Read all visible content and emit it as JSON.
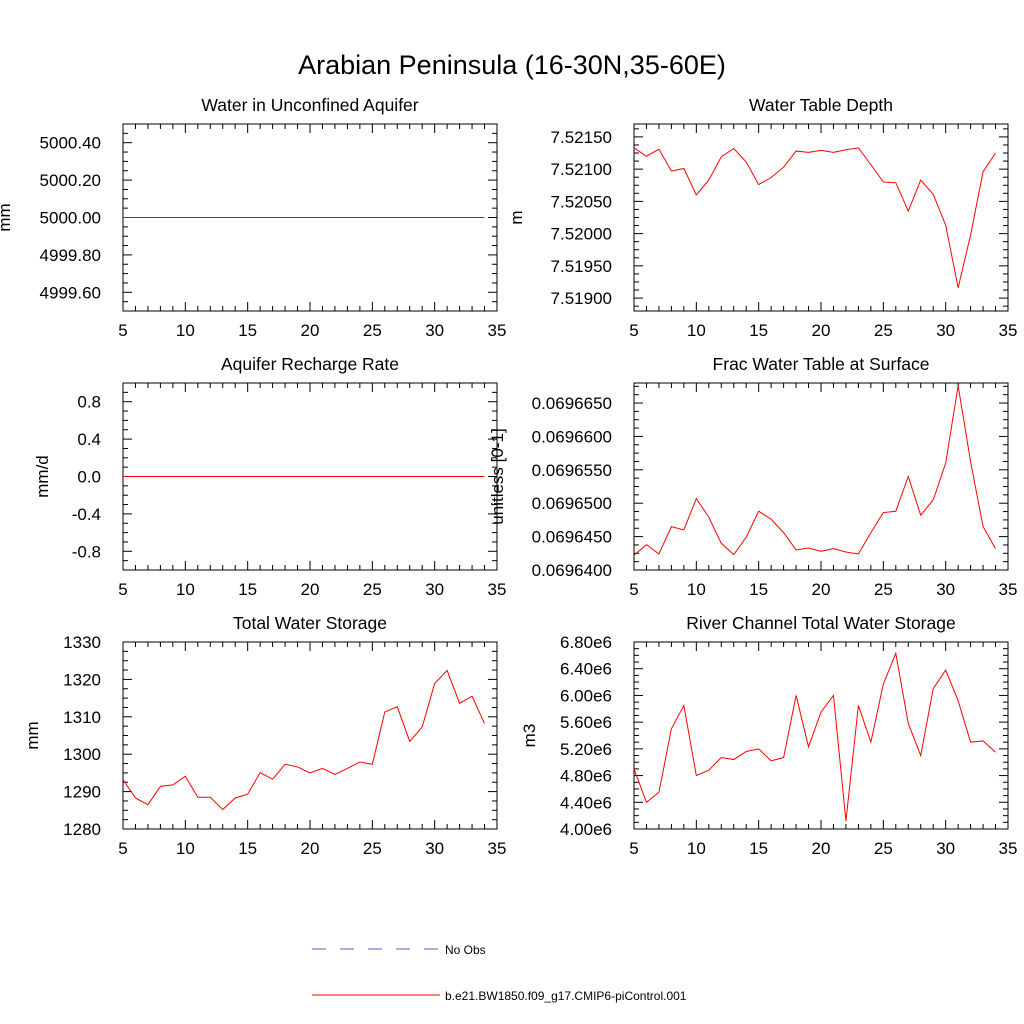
{
  "title": "Arabian Peninsula (16-30N,35-60E)",
  "legend": [
    {
      "label": "No Obs",
      "color": "#5a5ac8",
      "dash": true
    },
    {
      "label": "b.e21.BW1850.f09_g17.CMIP6-piControl.001",
      "color": "#ff0000",
      "dash": false
    }
  ],
  "chart_data": [
    {
      "type": "line",
      "title": "Water in Unconfined Aquifer",
      "ylabel": "mm",
      "xlim": [
        5,
        35
      ],
      "ylim": [
        4999.5,
        5000.5
      ],
      "xticks": [
        5,
        10,
        15,
        20,
        25,
        30,
        35
      ],
      "yticks": [
        4999.6,
        4999.8,
        5000.0,
        5000.2,
        5000.4
      ],
      "ytick_labels": [
        "4999.60",
        "4999.80",
        "5000.00",
        "5000.20",
        "5000.40"
      ],
      "x": [
        5,
        6,
        7,
        8,
        9,
        10,
        11,
        12,
        13,
        14,
        15,
        16,
        17,
        18,
        19,
        20,
        21,
        22,
        23,
        24,
        25,
        26,
        27,
        28,
        29,
        30,
        31,
        32,
        33,
        34
      ],
      "series": [
        {
          "color": "#ff0000",
          "values": [
            5000,
            5000,
            5000,
            5000,
            5000,
            5000,
            5000,
            5000,
            5000,
            5000,
            5000,
            5000,
            5000,
            5000,
            5000,
            5000,
            5000,
            5000,
            5000,
            5000,
            5000,
            5000,
            5000,
            5000,
            5000,
            5000,
            5000,
            5000,
            5000,
            5000
          ]
        }
      ]
    },
    {
      "type": "line",
      "title": "Water Table Depth",
      "ylabel": "m",
      "xlim": [
        5,
        35
      ],
      "ylim": [
        7.5188,
        7.5217
      ],
      "xticks": [
        5,
        10,
        15,
        20,
        25,
        30,
        35
      ],
      "yticks": [
        7.519,
        7.5195,
        7.52,
        7.5205,
        7.521,
        7.5215
      ],
      "ytick_labels": [
        "7.51900",
        "7.51950",
        "7.52000",
        "7.52050",
        "7.52100",
        "7.52150"
      ],
      "x": [
        5,
        6,
        7,
        8,
        9,
        10,
        11,
        12,
        13,
        14,
        15,
        16,
        17,
        18,
        19,
        20,
        21,
        22,
        23,
        24,
        25,
        26,
        27,
        28,
        29,
        30,
        31,
        32,
        33,
        34
      ],
      "series": [
        {
          "color": "#ff0000",
          "values": [
            7.52133,
            7.5212,
            7.52131,
            7.52097,
            7.52101,
            7.5206,
            7.52083,
            7.52119,
            7.52132,
            7.52111,
            7.52076,
            7.52087,
            7.52103,
            7.52128,
            7.52126,
            7.52129,
            7.52126,
            7.5213,
            7.52133,
            7.52107,
            7.5208,
            7.52079,
            7.52035,
            7.52083,
            7.52061,
            7.52013,
            7.51916,
            7.51998,
            7.52096,
            7.52125
          ]
        }
      ]
    },
    {
      "type": "line",
      "title": "Aquifer Recharge Rate",
      "ylabel": "mm/d",
      "xlim": [
        5,
        35
      ],
      "ylim": [
        -1,
        1
      ],
      "xticks": [
        5,
        10,
        15,
        20,
        25,
        30,
        35
      ],
      "yticks": [
        -0.8,
        -0.4,
        0.0,
        0.4,
        0.8
      ],
      "ytick_labels": [
        "-0.8",
        "-0.4",
        "0.0",
        "0.4",
        "0.8"
      ],
      "x": [
        5,
        6,
        7,
        8,
        9,
        10,
        11,
        12,
        13,
        14,
        15,
        16,
        17,
        18,
        19,
        20,
        21,
        22,
        23,
        24,
        25,
        26,
        27,
        28,
        29,
        30,
        31,
        32,
        33,
        34
      ],
      "series": [
        {
          "color": "#ff0000",
          "values": [
            0,
            0,
            0,
            0,
            0,
            0,
            0,
            0,
            0,
            0,
            0,
            0,
            0,
            0,
            0,
            0,
            0,
            0,
            0,
            0,
            0,
            0,
            0,
            0,
            0,
            0,
            0,
            0,
            0,
            0
          ]
        }
      ]
    },
    {
      "type": "line",
      "title": "Frac Water Table at Surface",
      "ylabel": "unitless [0-1]",
      "xlim": [
        5,
        35
      ],
      "ylim": [
        0.06964,
        0.069668
      ],
      "xticks": [
        5,
        10,
        15,
        20,
        25,
        30,
        35
      ],
      "yticks": [
        0.06964,
        0.069645,
        0.06965,
        0.069655,
        0.06966,
        0.069665
      ],
      "ytick_labels": [
        "0.0696400",
        "0.0696450",
        "0.0696500",
        "0.0696550",
        "0.0696600",
        "0.0696650"
      ],
      "x": [
        5,
        6,
        7,
        8,
        9,
        10,
        11,
        12,
        13,
        14,
        15,
        16,
        17,
        18,
        19,
        20,
        21,
        22,
        23,
        24,
        25,
        26,
        27,
        28,
        29,
        30,
        31,
        32,
        33,
        34
      ],
      "series": [
        {
          "color": "#ff0000",
          "values": [
            0.0696422,
            0.0696438,
            0.0696424,
            0.0696465,
            0.069646,
            0.0696507,
            0.0696479,
            0.069644,
            0.0696423,
            0.0696449,
            0.0696488,
            0.0696476,
            0.0696456,
            0.069643,
            0.0696433,
            0.0696428,
            0.0696432,
            0.0696427,
            0.0696424,
            0.0696456,
            0.0696486,
            0.0696488,
            0.069654,
            0.0696482,
            0.0696505,
            0.069656,
            0.0696676,
            0.0696562,
            0.0696465,
            0.0696432
          ]
        }
      ]
    },
    {
      "type": "line",
      "title": "Total Water Storage",
      "ylabel": "mm",
      "xlim": [
        5,
        35
      ],
      "ylim": [
        1280,
        1330
      ],
      "xticks": [
        5,
        10,
        15,
        20,
        25,
        30,
        35
      ],
      "yticks": [
        1280,
        1290,
        1300,
        1310,
        1320,
        1330
      ],
      "ytick_labels": [
        "1280",
        "1290",
        "1300",
        "1310",
        "1320",
        "1330"
      ],
      "x": [
        5,
        6,
        7,
        8,
        9,
        10,
        11,
        12,
        13,
        14,
        15,
        16,
        17,
        18,
        19,
        20,
        21,
        22,
        23,
        24,
        25,
        26,
        27,
        28,
        29,
        30,
        31,
        32,
        33,
        34
      ],
      "series": [
        {
          "color": "#ff0000",
          "values": [
            1293.2,
            1288.3,
            1286.5,
            1291.4,
            1291.8,
            1294.1,
            1288.5,
            1288.5,
            1285.2,
            1288.3,
            1289.3,
            1295.1,
            1293.3,
            1297.3,
            1296.6,
            1295.0,
            1296.2,
            1294.6,
            1296.2,
            1297.9,
            1297.3,
            1311.3,
            1312.7,
            1303.4,
            1307.3,
            1318.9,
            1322.4,
            1313.6,
            1315.5,
            1308.2
          ]
        }
      ]
    },
    {
      "type": "line",
      "title": "River Channel Total Water Storage",
      "ylabel": "m3",
      "xlim": [
        5,
        35
      ],
      "ylim": [
        4000000,
        6800000
      ],
      "xticks": [
        5,
        10,
        15,
        20,
        25,
        30,
        35
      ],
      "yticks": [
        4000000,
        4400000,
        4800000,
        5200000,
        5600000,
        6000000,
        6400000,
        6800000
      ],
      "ytick_labels": [
        "4.00e6",
        "4.40e6",
        "4.80e6",
        "5.20e6",
        "5.60e6",
        "6.00e6",
        "6.40e6",
        "6.80e6"
      ],
      "x": [
        5,
        6,
        7,
        8,
        9,
        10,
        11,
        12,
        13,
        14,
        15,
        16,
        17,
        18,
        19,
        20,
        21,
        22,
        23,
        24,
        25,
        26,
        27,
        28,
        29,
        30,
        31,
        32,
        33,
        34
      ],
      "series": [
        {
          "color": "#ff0000",
          "values": [
            4900000,
            4400000,
            4550000,
            5500000,
            5850000,
            4800000,
            4880000,
            5070000,
            5040000,
            5160000,
            5200000,
            5020000,
            5070000,
            6000000,
            5230000,
            5750000,
            6000000,
            4120000,
            5850000,
            5300000,
            6170000,
            6630000,
            5580000,
            5100000,
            6100000,
            6380000,
            5920000,
            5300000,
            5320000,
            5150000
          ]
        }
      ]
    }
  ]
}
